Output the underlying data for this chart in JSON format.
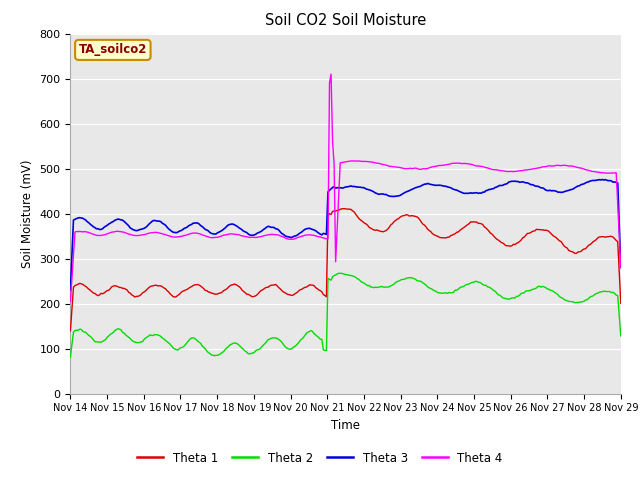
{
  "title": "Soil CO2 Soil Moisture",
  "ylabel": "Soil Moisture (mV)",
  "xlabel": "Time",
  "annotation": "TA_soilco2",
  "ylim": [
    0,
    800
  ],
  "bg_color": "#e8e8e8",
  "legend": [
    "Theta 1",
    "Theta 2",
    "Theta 3",
    "Theta 4"
  ],
  "colors": [
    "#dd0000",
    "#00dd00",
    "#0000dd",
    "#ff00ff"
  ],
  "x_tick_labels": [
    "Nov 14",
    "Nov 15",
    "Nov 16",
    "Nov 17",
    "Nov 18",
    "Nov 19",
    "Nov 20",
    "Nov 21",
    "Nov 22",
    "Nov 23",
    "Nov 24",
    "Nov 25",
    "Nov 26",
    "Nov 27",
    "Nov 28",
    "Nov 29"
  ]
}
